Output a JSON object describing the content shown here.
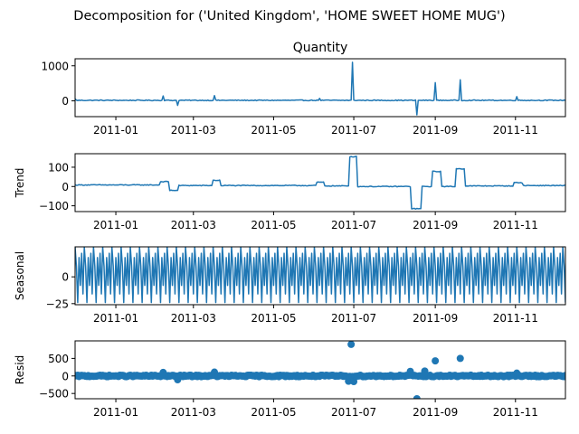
{
  "figure": {
    "suptitle": "Decomposition for ('United Kingdom', 'HOME SWEET HOME MUG')"
  },
  "style": {
    "line_color": "#1f77b4",
    "axis_color": "#000000",
    "background": "#ffffff"
  },
  "chart_data": [
    {
      "type": "line",
      "title": "Quantity",
      "ylabel": "",
      "xlim": [
        "2010-12-01",
        "2011-12-09"
      ],
      "ylim": [
        -450,
        1200
      ],
      "yticks": [
        0,
        1000
      ],
      "ytick_labels": [
        "0",
        "1000"
      ],
      "xtick_labels": [
        "2011-01",
        "2011-03",
        "2011-05",
        "2011-07",
        "2011-09",
        "2011-11"
      ],
      "xtick_dates": [
        "2011-01-01",
        "2011-03-01",
        "2011-05-01",
        "2011-07-01",
        "2011-09-01",
        "2011-11-01"
      ],
      "baseline": 15,
      "noise": 12,
      "spikes": [
        {
          "x": "2010-12-01",
          "y": 60
        },
        {
          "x": "2011-02-06",
          "y": 140
        },
        {
          "x": "2011-02-17",
          "y": -130
        },
        {
          "x": "2011-03-17",
          "y": 150
        },
        {
          "x": "2011-06-05",
          "y": 70
        },
        {
          "x": "2011-06-30",
          "y": 1100
        },
        {
          "x": "2011-08-18",
          "y": -400
        },
        {
          "x": "2011-09-01",
          "y": 520
        },
        {
          "x": "2011-09-20",
          "y": 600
        },
        {
          "x": "2011-11-02",
          "y": 120
        }
      ]
    },
    {
      "type": "line",
      "title": "",
      "ylabel": "Trend",
      "xlim": [
        "2010-12-01",
        "2011-12-09"
      ],
      "ylim": [
        -130,
        170
      ],
      "yticks": [
        100,
        0,
        -100
      ],
      "ytick_labels": [
        "100",
        "0",
        "−100"
      ],
      "xtick_labels": [
        "2011-01",
        "2011-03",
        "2011-05",
        "2011-07",
        "2011-09",
        "2011-11"
      ],
      "xtick_dates": [
        "2011-01-01",
        "2011-03-01",
        "2011-05-01",
        "2011-07-01",
        "2011-09-01",
        "2011-11-01"
      ],
      "segments": [
        {
          "from": "2010-12-01",
          "to": "2011-02-03",
          "y": 8
        },
        {
          "from": "2011-02-04",
          "to": "2011-02-10",
          "y": 25
        },
        {
          "from": "2011-02-11",
          "to": "2011-02-17",
          "y": -20
        },
        {
          "from": "2011-02-18",
          "to": "2011-03-15",
          "y": 5
        },
        {
          "from": "2011-03-16",
          "to": "2011-03-21",
          "y": 32
        },
        {
          "from": "2011-03-22",
          "to": "2011-06-02",
          "y": 5
        },
        {
          "from": "2011-06-03",
          "to": "2011-06-08",
          "y": 22
        },
        {
          "from": "2011-06-09",
          "to": "2011-06-27",
          "y": 3
        },
        {
          "from": "2011-06-28",
          "to": "2011-07-03",
          "y": 155
        },
        {
          "from": "2011-07-04",
          "to": "2011-08-13",
          "y": 0
        },
        {
          "from": "2011-08-14",
          "to": "2011-08-21",
          "y": -115
        },
        {
          "from": "2011-08-22",
          "to": "2011-08-29",
          "y": 0
        },
        {
          "from": "2011-08-30",
          "to": "2011-09-05",
          "y": 78
        },
        {
          "from": "2011-09-06",
          "to": "2011-09-16",
          "y": 0
        },
        {
          "from": "2011-09-17",
          "to": "2011-09-23",
          "y": 92
        },
        {
          "from": "2011-09-24",
          "to": "2011-10-30",
          "y": 3
        },
        {
          "from": "2011-10-31",
          "to": "2011-11-06",
          "y": 20
        },
        {
          "from": "2011-11-07",
          "to": "2011-12-09",
          "y": 5
        }
      ]
    },
    {
      "type": "line",
      "title": "",
      "ylabel": "Seasonal",
      "xlim": [
        "2010-12-01",
        "2011-12-09"
      ],
      "ylim": [
        -26,
        28
      ],
      "yticks": [
        0,
        -25
      ],
      "ytick_labels": [
        "0",
        "−25"
      ],
      "xtick_labels": [
        "2011-01",
        "2011-03",
        "2011-05",
        "2011-07",
        "2011-09",
        "2011-11"
      ],
      "xtick_dates": [
        "2011-01-01",
        "2011-03-01",
        "2011-05-01",
        "2011-07-01",
        "2011-09-01",
        "2011-11-01"
      ],
      "weekly_pattern": [
        28,
        10,
        -24,
        18,
        -8,
        22,
        -16
      ]
    },
    {
      "type": "scatter",
      "title": "",
      "ylabel": "Resid",
      "xlim": [
        "2010-12-01",
        "2011-12-09"
      ],
      "ylim": [
        -650,
        1000
      ],
      "yticks": [
        500,
        0,
        -500
      ],
      "ytick_labels": [
        "500",
        "0",
        "−500"
      ],
      "xtick_labels": [
        "2011-01",
        "2011-03",
        "2011-05",
        "2011-07",
        "2011-09",
        "2011-11"
      ],
      "xtick_dates": [
        "2011-01-01",
        "2011-03-01",
        "2011-05-01",
        "2011-07-01",
        "2011-09-01",
        "2011-11-01"
      ],
      "baseline": 0,
      "noise": 22,
      "outliers": [
        {
          "x": "2011-02-06",
          "y": 100
        },
        {
          "x": "2011-02-17",
          "y": -110
        },
        {
          "x": "2011-03-17",
          "y": 110
        },
        {
          "x": "2011-06-27",
          "y": -150
        },
        {
          "x": "2011-06-29",
          "y": 900
        },
        {
          "x": "2011-07-01",
          "y": -160
        },
        {
          "x": "2011-08-13",
          "y": 130
        },
        {
          "x": "2011-08-18",
          "y": -650
        },
        {
          "x": "2011-08-24",
          "y": 140
        },
        {
          "x": "2011-09-01",
          "y": 430
        },
        {
          "x": "2011-09-20",
          "y": 500
        },
        {
          "x": "2011-11-02",
          "y": 80
        }
      ]
    }
  ]
}
